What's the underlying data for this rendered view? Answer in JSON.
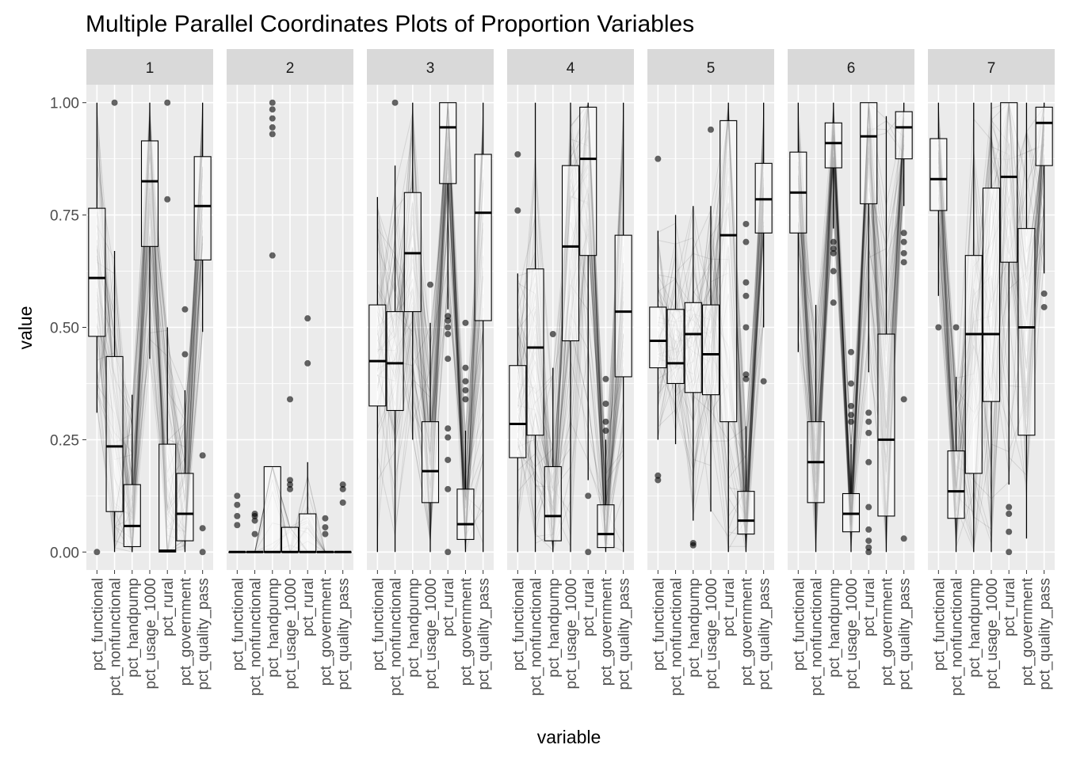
{
  "chart_data": {
    "type": "boxplot",
    "title": "Multiple Parallel Coordinates Plots of Proportion Variables",
    "xlabel": "variable",
    "ylabel": "value",
    "ylim": [
      -0.04,
      1.04
    ],
    "yticks": [
      0,
      0.25,
      0.5,
      0.75,
      1
    ],
    "ytick_labels": [
      "0.00",
      "0.25",
      "0.50",
      "0.75",
      "1.00"
    ],
    "grid": true,
    "legend": "none",
    "variables": [
      "pct_functional",
      "pct_nonfunctional",
      "pct_handpump",
      "pct_usage_1000",
      "pct_rural",
      "pct_government",
      "pct_quality_pass"
    ],
    "panels": [
      {
        "label": "1",
        "boxes": [
          {
            "q1": 0.48,
            "median": 0.61,
            "q3": 0.765,
            "wlo": 0.31,
            "whi": 1.0,
            "out": [
              0.0
            ]
          },
          {
            "q1": 0.09,
            "median": 0.235,
            "q3": 0.435,
            "wlo": 0.0,
            "whi": 0.67,
            "out": [
              1.0
            ]
          },
          {
            "q1": 0.012,
            "median": 0.058,
            "q3": 0.15,
            "wlo": 0.0,
            "whi": 0.35,
            "out": []
          },
          {
            "q1": 0.68,
            "median": 0.825,
            "q3": 0.915,
            "wlo": 0.43,
            "whi": 1.0,
            "out": []
          },
          {
            "q1": 0.0,
            "median": 0.003,
            "q3": 0.24,
            "wlo": 0.0,
            "whi": 0.5,
            "out": [
              0.785,
              1.0
            ]
          },
          {
            "q1": 0.025,
            "median": 0.085,
            "q3": 0.175,
            "wlo": 0.0,
            "whi": 0.36,
            "out": [
              0.44,
              0.54
            ]
          },
          {
            "q1": 0.65,
            "median": 0.77,
            "q3": 0.88,
            "wlo": 0.49,
            "whi": 1.0,
            "out": [
              0.0,
              0.053,
              0.215
            ]
          }
        ]
      },
      {
        "label": "2",
        "boxes": [
          {
            "q1": 0.0,
            "median": 0.0,
            "q3": 0.0,
            "wlo": 0.0,
            "whi": 0.0,
            "out": [
              0.06,
              0.08,
              0.105,
              0.125
            ]
          },
          {
            "q1": 0.0,
            "median": 0.0,
            "q3": 0.0,
            "wlo": 0.0,
            "whi": 0.0,
            "out": [
              0.04,
              0.07,
              0.08,
              0.085
            ]
          },
          {
            "q1": 0.0,
            "median": 0.0,
            "q3": 0.19,
            "wlo": 0.0,
            "whi": 0.19,
            "out": [
              0.66,
              0.93,
              0.945,
              0.965,
              0.985,
              1.0
            ]
          },
          {
            "q1": 0.0,
            "median": 0.0,
            "q3": 0.055,
            "wlo": 0.0,
            "whi": 0.055,
            "out": [
              0.14,
              0.15,
              0.16,
              0.34
            ]
          },
          {
            "q1": 0.0,
            "median": 0.0,
            "q3": 0.085,
            "wlo": 0.0,
            "whi": 0.2,
            "out": [
              0.42,
              0.52
            ]
          },
          {
            "q1": 0.0,
            "median": 0.0,
            "q3": 0.0,
            "wlo": 0.0,
            "whi": 0.0,
            "out": [
              0.04,
              0.055,
              0.075
            ]
          },
          {
            "q1": 0.0,
            "median": 0.0,
            "q3": 0.0,
            "wlo": 0.0,
            "whi": 0.0,
            "out": [
              0.11,
              0.14,
              0.15
            ]
          }
        ]
      },
      {
        "label": "3",
        "boxes": [
          {
            "q1": 0.325,
            "median": 0.425,
            "q3": 0.55,
            "wlo": 0.0,
            "whi": 0.79,
            "out": []
          },
          {
            "q1": 0.315,
            "median": 0.42,
            "q3": 0.535,
            "wlo": 0.0,
            "whi": 0.86,
            "out": [
              1.0
            ]
          },
          {
            "q1": 0.535,
            "median": 0.665,
            "q3": 0.8,
            "wlo": 0.25,
            "whi": 1.0,
            "out": []
          },
          {
            "q1": 0.11,
            "median": 0.18,
            "q3": 0.29,
            "wlo": 0.0,
            "whi": 0.51,
            "out": [
              0.595
            ]
          },
          {
            "q1": 0.82,
            "median": 0.945,
            "q3": 1.0,
            "wlo": 0.54,
            "whi": 1.0,
            "out": [
              0.0,
              0.14,
              0.205,
              0.255,
              0.275,
              0.43,
              0.485,
              0.5,
              0.515,
              0.525
            ]
          },
          {
            "q1": 0.028,
            "median": 0.062,
            "q3": 0.14,
            "wlo": 0.0,
            "whi": 0.27,
            "out": [
              0.34,
              0.36,
              0.38,
              0.41,
              0.51
            ]
          },
          {
            "q1": 0.515,
            "median": 0.755,
            "q3": 0.885,
            "wlo": 0.0,
            "whi": 1.0,
            "out": []
          }
        ]
      },
      {
        "label": "4",
        "boxes": [
          {
            "q1": 0.21,
            "median": 0.285,
            "q3": 0.415,
            "wlo": 0.0,
            "whi": 0.62,
            "out": [
              0.76,
              0.885
            ]
          },
          {
            "q1": 0.26,
            "median": 0.455,
            "q3": 0.63,
            "wlo": 0.0,
            "whi": 1.0,
            "out": []
          },
          {
            "q1": 0.025,
            "median": 0.08,
            "q3": 0.19,
            "wlo": 0.0,
            "whi": 0.41,
            "out": [
              0.485
            ]
          },
          {
            "q1": 0.47,
            "median": 0.68,
            "q3": 0.86,
            "wlo": 0.0,
            "whi": 1.0,
            "out": []
          },
          {
            "q1": 0.66,
            "median": 0.875,
            "q3": 0.99,
            "wlo": 0.16,
            "whi": 1.0,
            "out": [
              0.0,
              0.125
            ]
          },
          {
            "q1": 0.01,
            "median": 0.04,
            "q3": 0.105,
            "wlo": 0.0,
            "whi": 0.25,
            "out": [
              0.27,
              0.29,
              0.33,
              0.385
            ]
          },
          {
            "q1": 0.39,
            "median": 0.535,
            "q3": 0.705,
            "wlo": 0.0,
            "whi": 1.0,
            "out": []
          }
        ]
      },
      {
        "label": "5",
        "boxes": [
          {
            "q1": 0.41,
            "median": 0.47,
            "q3": 0.545,
            "wlo": 0.25,
            "whi": 0.715,
            "out": [
              0.16,
              0.17,
              0.875
            ]
          },
          {
            "q1": 0.375,
            "median": 0.42,
            "q3": 0.54,
            "wlo": 0.24,
            "whi": 0.75,
            "out": []
          },
          {
            "q1": 0.355,
            "median": 0.485,
            "q3": 0.555,
            "wlo": 0.07,
            "whi": 0.77,
            "out": [
              0.015,
              0.02
            ]
          },
          {
            "q1": 0.35,
            "median": 0.44,
            "q3": 0.55,
            "wlo": 0.09,
            "whi": 0.77,
            "out": [
              0.94
            ]
          },
          {
            "q1": 0.29,
            "median": 0.705,
            "q3": 0.96,
            "wlo": 0.0,
            "whi": 1.0,
            "out": []
          },
          {
            "q1": 0.04,
            "median": 0.07,
            "q3": 0.135,
            "wlo": 0.0,
            "whi": 0.28,
            "out": [
              0.385,
              0.395,
              0.5,
              0.57,
              0.6,
              0.69,
              0.73
            ]
          },
          {
            "q1": 0.71,
            "median": 0.785,
            "q3": 0.865,
            "wlo": 0.5,
            "whi": 1.0,
            "out": [
              0.38
            ]
          }
        ]
      },
      {
        "label": "6",
        "boxes": [
          {
            "q1": 0.71,
            "median": 0.8,
            "q3": 0.89,
            "wlo": 0.445,
            "whi": 1.0,
            "out": []
          },
          {
            "q1": 0.11,
            "median": 0.2,
            "q3": 0.29,
            "wlo": 0.0,
            "whi": 0.55,
            "out": []
          },
          {
            "q1": 0.855,
            "median": 0.91,
            "q3": 0.955,
            "wlo": 0.72,
            "whi": 1.0,
            "out": [
              0.555,
              0.625,
              0.665,
              0.675,
              0.69
            ]
          },
          {
            "q1": 0.045,
            "median": 0.085,
            "q3": 0.13,
            "wlo": 0.0,
            "whi": 0.24,
            "out": [
              0.29,
              0.305,
              0.325,
              0.375,
              0.445
            ]
          },
          {
            "q1": 0.775,
            "median": 0.925,
            "q3": 1.0,
            "wlo": 0.4,
            "whi": 1.0,
            "out": [
              0.0,
              0.01,
              0.025,
              0.05,
              0.1,
              0.2,
              0.265,
              0.29,
              0.31
            ]
          },
          {
            "q1": 0.08,
            "median": 0.25,
            "q3": 0.485,
            "wlo": 0.0,
            "whi": 0.97,
            "out": []
          },
          {
            "q1": 0.875,
            "median": 0.945,
            "q3": 0.98,
            "wlo": 0.77,
            "whi": 1.0,
            "out": [
              0.03,
              0.34,
              0.645,
              0.665,
              0.69,
              0.71
            ]
          }
        ]
      },
      {
        "label": "7",
        "boxes": [
          {
            "q1": 0.76,
            "median": 0.83,
            "q3": 0.92,
            "wlo": 0.57,
            "whi": 1.0,
            "out": [
              0.5
            ]
          },
          {
            "q1": 0.075,
            "median": 0.135,
            "q3": 0.225,
            "wlo": 0.0,
            "whi": 0.39,
            "out": [
              0.5
            ]
          },
          {
            "q1": 0.175,
            "median": 0.485,
            "q3": 0.66,
            "wlo": 0.0,
            "whi": 1.0,
            "out": []
          },
          {
            "q1": 0.335,
            "median": 0.485,
            "q3": 0.81,
            "wlo": 0.0,
            "whi": 1.0,
            "out": []
          },
          {
            "q1": 0.645,
            "median": 0.835,
            "q3": 1.0,
            "wlo": 0.15,
            "whi": 1.0,
            "out": [
              0.0,
              0.045,
              0.085,
              0.1
            ]
          },
          {
            "q1": 0.26,
            "median": 0.5,
            "q3": 0.72,
            "wlo": 0.03,
            "whi": 1.0,
            "out": []
          },
          {
            "q1": 0.86,
            "median": 0.955,
            "q3": 0.99,
            "wlo": 0.62,
            "whi": 1.0,
            "out": [
              0.545,
              0.575
            ]
          }
        ]
      }
    ]
  }
}
